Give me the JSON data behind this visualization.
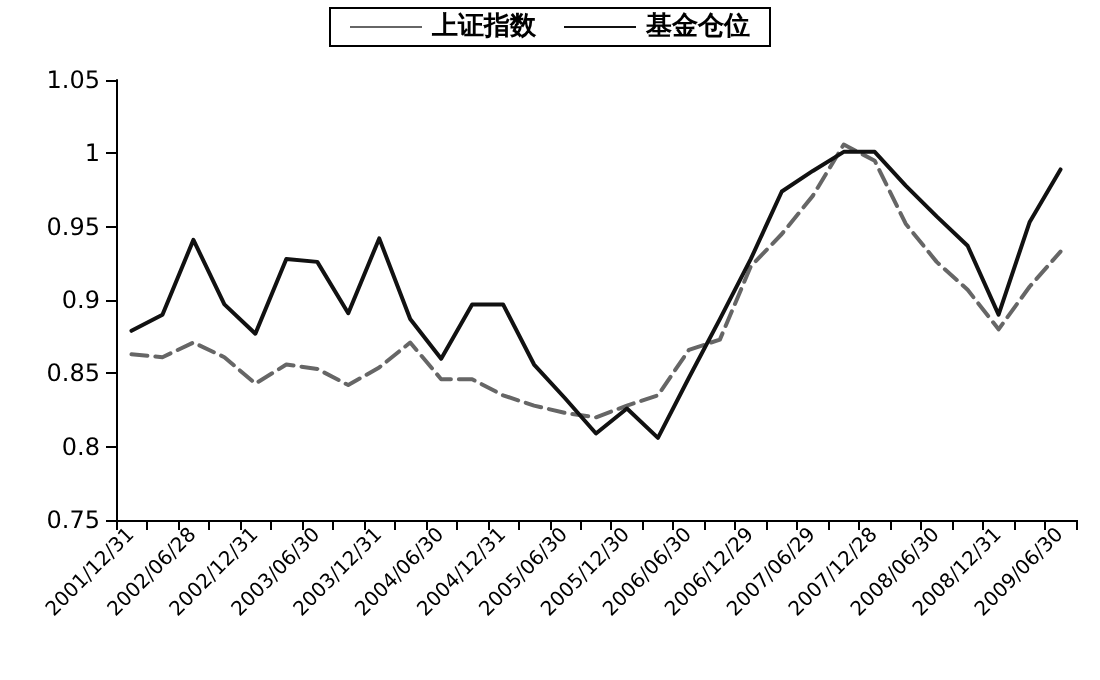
{
  "chart_data": {
    "type": "line",
    "categories": [
      "2001/12/31",
      null,
      "2002/06/28",
      null,
      "2002/12/31",
      null,
      "2003/06/30",
      null,
      "2003/12/31",
      null,
      "2004/06/30",
      null,
      "2004/12/31",
      null,
      "2005/06/30",
      null,
      "2005/12/30",
      null,
      "2006/06/30",
      null,
      "2006/12/29",
      null,
      "2007/06/29",
      null,
      "2007/12/28",
      null,
      "2008/06/30",
      null,
      "2008/12/31",
      null,
      "2009/06/30"
    ],
    "series": [
      {
        "name": "上证指数",
        "color": "#666666",
        "line_style": "dashed",
        "values": [
          0.863,
          0.861,
          0.871,
          0.861,
          0.843,
          0.856,
          0.853,
          0.842,
          0.854,
          0.871,
          0.846,
          0.846,
          0.835,
          0.828,
          0.823,
          0.82,
          0.828,
          0.835,
          0.866,
          0.873,
          0.923,
          0.945,
          0.971,
          1.006,
          0.995,
          0.952,
          0.926,
          0.907,
          0.88,
          0.909,
          0.933
        ]
      },
      {
        "name": "基金仓位",
        "color": "#111111",
        "line_style": "solid",
        "values": [
          0.879,
          0.89,
          0.941,
          0.897,
          0.877,
          0.928,
          0.926,
          0.891,
          0.942,
          0.887,
          0.86,
          0.897,
          0.897,
          0.856,
          0.833,
          0.809,
          0.826,
          0.806,
          0.847,
          0.887,
          0.928,
          0.974,
          0.988,
          1.001,
          1.001,
          0.978,
          0.957,
          0.937,
          0.89,
          0.953,
          0.989
        ]
      }
    ],
    "ylim": [
      0.75,
      1.05
    ],
    "yticks": [
      0.75,
      0.8,
      0.85,
      0.9,
      0.95,
      1,
      1.05
    ],
    "grid": false,
    "legend": "top",
    "marker": "none"
  }
}
